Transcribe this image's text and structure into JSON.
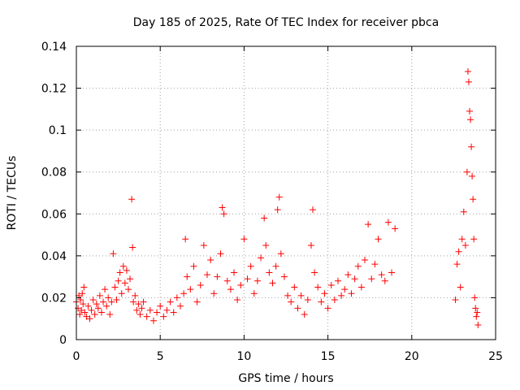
{
  "chart_data": {
    "type": "scatter",
    "title": "Day 185 of 2025, Rate Of TEC Index for receiver pbca",
    "xlabel": "GPS time / hours",
    "ylabel": "ROTI / TECUs",
    "xlim": [
      0,
      25
    ],
    "ylim": [
      0,
      0.14
    ],
    "x_ticks": [
      0,
      5,
      10,
      15,
      20,
      25
    ],
    "x_tick_labels": [
      "0",
      "5",
      "10",
      "15",
      "20",
      "25"
    ],
    "y_ticks": [
      0,
      0.02,
      0.04,
      0.06,
      0.08,
      0.1,
      0.12,
      0.14
    ],
    "y_tick_labels": [
      "0",
      "0.02",
      "0.04",
      "0.06",
      "0.08",
      "0.1",
      "0.12",
      "0.14"
    ],
    "grid": true,
    "marker": "plus",
    "color": "#ff0000",
    "series": [
      {
        "points": [
          [
            0.0,
            0.018
          ],
          [
            0.1,
            0.015
          ],
          [
            0.15,
            0.021
          ],
          [
            0.2,
            0.012
          ],
          [
            0.25,
            0.019
          ],
          [
            0.3,
            0.014
          ],
          [
            0.35,
            0.022
          ],
          [
            0.4,
            0.017
          ],
          [
            0.45,
            0.025
          ],
          [
            0.5,
            0.013
          ],
          [
            0.6,
            0.011
          ],
          [
            0.7,
            0.016
          ],
          [
            0.8,
            0.01
          ],
          [
            0.9,
            0.014
          ],
          [
            1.0,
            0.019
          ],
          [
            1.1,
            0.012
          ],
          [
            1.2,
            0.017
          ],
          [
            1.3,
            0.015
          ],
          [
            1.4,
            0.021
          ],
          [
            1.5,
            0.013
          ],
          [
            1.6,
            0.018
          ],
          [
            1.7,
            0.024
          ],
          [
            1.8,
            0.016
          ],
          [
            1.9,
            0.02
          ],
          [
            2.0,
            0.012
          ],
          [
            2.1,
            0.018
          ],
          [
            2.2,
            0.041
          ],
          [
            2.3,
            0.025
          ],
          [
            2.4,
            0.019
          ],
          [
            2.5,
            0.028
          ],
          [
            2.6,
            0.032
          ],
          [
            2.7,
            0.022
          ],
          [
            2.8,
            0.035
          ],
          [
            2.9,
            0.027
          ],
          [
            3.0,
            0.033
          ],
          [
            3.1,
            0.024
          ],
          [
            3.2,
            0.029
          ],
          [
            3.3,
            0.067
          ],
          [
            3.35,
            0.044
          ],
          [
            3.4,
            0.018
          ],
          [
            3.5,
            0.021
          ],
          [
            3.6,
            0.014
          ],
          [
            3.7,
            0.017
          ],
          [
            3.8,
            0.012
          ],
          [
            3.9,
            0.015
          ],
          [
            4.0,
            0.018
          ],
          [
            4.2,
            0.011
          ],
          [
            4.4,
            0.014
          ],
          [
            4.6,
            0.009
          ],
          [
            4.8,
            0.013
          ],
          [
            5.0,
            0.016
          ],
          [
            5.2,
            0.011
          ],
          [
            5.4,
            0.014
          ],
          [
            5.6,
            0.018
          ],
          [
            5.8,
            0.013
          ],
          [
            6.0,
            0.02
          ],
          [
            6.2,
            0.016
          ],
          [
            6.4,
            0.022
          ],
          [
            6.5,
            0.048
          ],
          [
            6.6,
            0.03
          ],
          [
            6.8,
            0.024
          ],
          [
            7.0,
            0.035
          ],
          [
            7.2,
            0.018
          ],
          [
            7.4,
            0.026
          ],
          [
            7.6,
            0.045
          ],
          [
            7.8,
            0.031
          ],
          [
            8.0,
            0.038
          ],
          [
            8.2,
            0.022
          ],
          [
            8.4,
            0.03
          ],
          [
            8.6,
            0.041
          ],
          [
            8.7,
            0.063
          ],
          [
            8.8,
            0.06
          ],
          [
            9.0,
            0.028
          ],
          [
            9.2,
            0.024
          ],
          [
            9.4,
            0.032
          ],
          [
            9.6,
            0.019
          ],
          [
            9.8,
            0.026
          ],
          [
            10.0,
            0.048
          ],
          [
            10.2,
            0.029
          ],
          [
            10.4,
            0.035
          ],
          [
            10.6,
            0.022
          ],
          [
            10.8,
            0.028
          ],
          [
            11.0,
            0.039
          ],
          [
            11.2,
            0.058
          ],
          [
            11.3,
            0.045
          ],
          [
            11.5,
            0.032
          ],
          [
            11.7,
            0.027
          ],
          [
            11.9,
            0.035
          ],
          [
            12.0,
            0.062
          ],
          [
            12.1,
            0.068
          ],
          [
            12.2,
            0.041
          ],
          [
            12.4,
            0.03
          ],
          [
            12.6,
            0.021
          ],
          [
            12.8,
            0.018
          ],
          [
            13.0,
            0.025
          ],
          [
            13.2,
            0.015
          ],
          [
            13.4,
            0.021
          ],
          [
            13.6,
            0.012
          ],
          [
            13.8,
            0.019
          ],
          [
            14.0,
            0.045
          ],
          [
            14.1,
            0.062
          ],
          [
            14.2,
            0.032
          ],
          [
            14.4,
            0.025
          ],
          [
            14.6,
            0.018
          ],
          [
            14.8,
            0.022
          ],
          [
            15.0,
            0.015
          ],
          [
            15.2,
            0.026
          ],
          [
            15.4,
            0.019
          ],
          [
            15.6,
            0.028
          ],
          [
            15.8,
            0.021
          ],
          [
            16.0,
            0.024
          ],
          [
            16.2,
            0.031
          ],
          [
            16.4,
            0.022
          ],
          [
            16.6,
            0.029
          ],
          [
            16.8,
            0.035
          ],
          [
            17.0,
            0.025
          ],
          [
            17.2,
            0.038
          ],
          [
            17.4,
            0.055
          ],
          [
            17.6,
            0.029
          ],
          [
            17.8,
            0.036
          ],
          [
            18.0,
            0.048
          ],
          [
            18.2,
            0.031
          ],
          [
            18.4,
            0.028
          ],
          [
            18.6,
            0.056
          ],
          [
            18.8,
            0.032
          ],
          [
            19.0,
            0.053
          ],
          [
            22.6,
            0.019
          ],
          [
            22.7,
            0.036
          ],
          [
            22.8,
            0.042
          ],
          [
            22.9,
            0.025
          ],
          [
            23.0,
            0.048
          ],
          [
            23.1,
            0.061
          ],
          [
            23.2,
            0.045
          ],
          [
            23.3,
            0.08
          ],
          [
            23.35,
            0.128
          ],
          [
            23.4,
            0.123
          ],
          [
            23.45,
            0.109
          ],
          [
            23.5,
            0.105
          ],
          [
            23.55,
            0.092
          ],
          [
            23.6,
            0.078
          ],
          [
            23.65,
            0.067
          ],
          [
            23.7,
            0.048
          ],
          [
            23.75,
            0.02
          ],
          [
            23.8,
            0.015
          ],
          [
            23.85,
            0.011
          ],
          [
            23.9,
            0.013
          ],
          [
            23.95,
            0.007
          ]
        ]
      }
    ]
  }
}
